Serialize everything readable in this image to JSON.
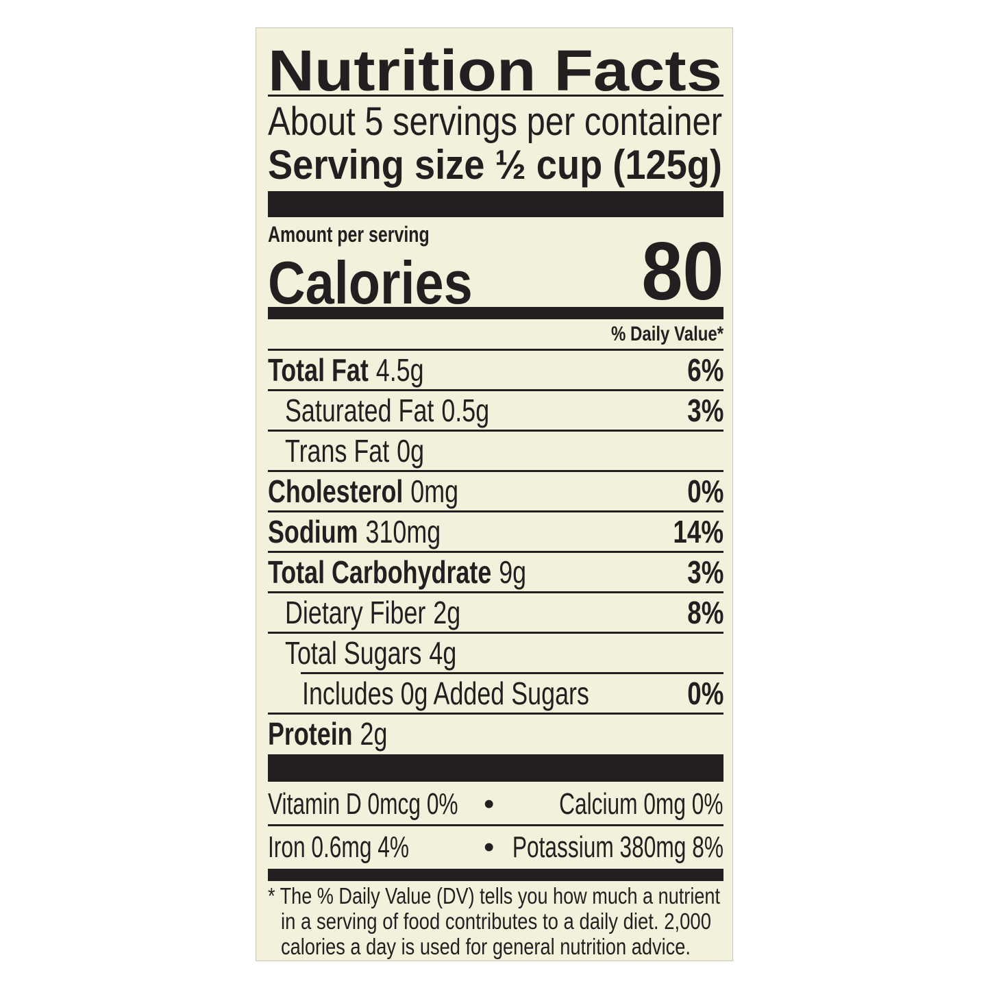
{
  "title": "Nutrition Facts",
  "servings_per_container": "About 5 servings per container",
  "serving_size_label": "Serving size",
  "serving_size_value": "½ cup (125g)",
  "amount_per_serving": "Amount per serving",
  "calories_label": "Calories",
  "calories_value": "80",
  "daily_value_header": "% Daily Value*",
  "nutrients": [
    {
      "label": "Total Fat",
      "amount": "4.5g",
      "dv": "6%"
    },
    {
      "label": "Saturated Fat",
      "amount": "0.5g",
      "dv": "3%"
    },
    {
      "label": "Trans Fat",
      "amount": "0g",
      "dv": ""
    },
    {
      "label": "Cholesterol",
      "amount": "0mg",
      "dv": "0%"
    },
    {
      "label": "Sodium",
      "amount": "310mg",
      "dv": "14%"
    },
    {
      "label": "Total Carbohydrate",
      "amount": "9g",
      "dv": "3%"
    },
    {
      "label": "Dietary Fiber",
      "amount": "2g",
      "dv": "8%"
    },
    {
      "label": "Total Sugars",
      "amount": "4g",
      "dv": ""
    },
    {
      "label": "Includes 0g Added Sugars",
      "amount": "",
      "dv": "0%"
    },
    {
      "label": "Protein",
      "amount": "2g",
      "dv": ""
    }
  ],
  "micros": [
    {
      "text": "Vitamin D  0mcg  0%"
    },
    {
      "text": "Calcium  0mg  0%"
    },
    {
      "text": "Iron  0.6mg  4%"
    },
    {
      "text": "Potassium  380mg  8%"
    }
  ],
  "bullet": "•",
  "footnote": [
    "* The % Daily Value (DV) tells you how much a nutrient",
    "in a serving of food contributes to a daily diet. 2,000",
    "calories a day is used for general nutrition advice."
  ]
}
